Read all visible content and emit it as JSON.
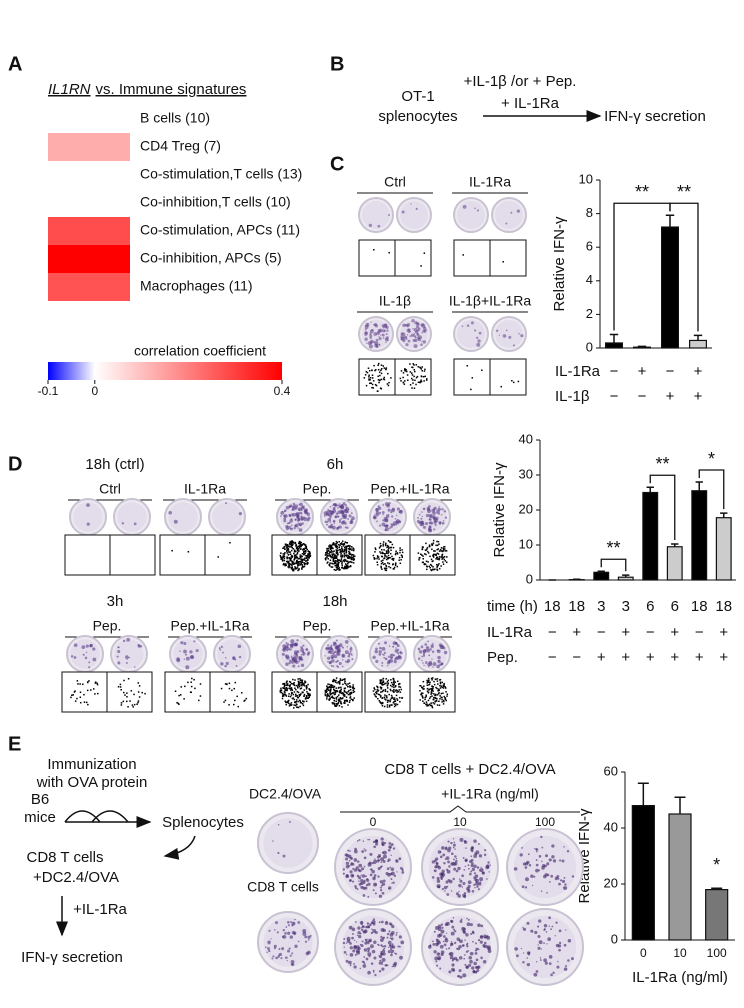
{
  "panel_labels": [
    "A",
    "B",
    "C",
    "D",
    "E"
  ],
  "chart_data": [
    {
      "type": "heatmap",
      "title_gene": "IL1RN",
      "title": "vs. Immune signatures",
      "categories": [
        "B cells (10)",
        "CD4 Treg (7)",
        "Co-stimulation,T cells (13)",
        "Co-inhibition,T cells (10)",
        "Co-stimulation, APCs (11)",
        "Co-inhibition, APCs (5)",
        "Macrophages (11)"
      ],
      "values": [
        0.0,
        0.13,
        0.0,
        0.0,
        0.28,
        0.4,
        0.27
      ],
      "colorbar": {
        "label": "correlation coefficient",
        "lim": [
          -0.1,
          0.4
        ],
        "ticks": [
          -0.1,
          0,
          0.4
        ],
        "colors": [
          "#0000ff",
          "#ffffff",
          "#ff0000"
        ]
      }
    },
    {
      "type": "bar",
      "ylabel": "Relative IFN-γ",
      "ylim": [
        0,
        10
      ],
      "yticks": [
        0,
        2,
        4,
        6,
        8,
        10
      ],
      "values": [
        0.3,
        0.05,
        7.2,
        0.45
      ],
      "errors": [
        0.5,
        0.05,
        0.7,
        0.3
      ],
      "colors": [
        "#000000",
        "#ffffff",
        "#000000",
        "#cccccc"
      ],
      "significance": [
        "**",
        "**"
      ],
      "rows": [
        {
          "label": "IL-1Ra",
          "values": [
            "−",
            "+",
            "−",
            "+"
          ]
        },
        {
          "label": "IL-1β",
          "values": [
            "−",
            "−",
            "+",
            "+"
          ]
        }
      ]
    },
    {
      "type": "bar",
      "ylabel": "Relative IFN-γ",
      "ylim": [
        0,
        40
      ],
      "yticks": [
        0,
        10,
        20,
        30,
        40
      ],
      "values": [
        0,
        0.1,
        2.2,
        0.8,
        25,
        9.5,
        25.5,
        17.8
      ],
      "errors": [
        0,
        0.1,
        0.3,
        0.6,
        1.5,
        0.8,
        2.5,
        1.3
      ],
      "colors": [
        "#000000",
        "#cccccc",
        "#000000",
        "#cccccc",
        "#000000",
        "#cccccc",
        "#000000",
        "#cccccc"
      ],
      "significance": [
        "**",
        "**",
        "*"
      ],
      "rows": [
        {
          "label": "time (h)",
          "values": [
            18,
            18,
            3,
            3,
            6,
            6,
            18,
            18
          ]
        },
        {
          "label": "IL-1Ra",
          "values": [
            "−",
            "+",
            "−",
            "+",
            "−",
            "+",
            "−",
            "+"
          ]
        },
        {
          "label": "Pep.",
          "values": [
            "−",
            "−",
            "+",
            "+",
            "+",
            "+",
            "+",
            "+"
          ]
        }
      ]
    },
    {
      "type": "bar",
      "ylabel": "Relative IFN-γ",
      "xlabel": "IL-1Ra (ng/ml)",
      "ylim": [
        0,
        60
      ],
      "yticks": [
        0,
        20,
        40,
        60
      ],
      "categories": [
        "0",
        "10",
        "100"
      ],
      "values": [
        48,
        45,
        18
      ],
      "errors": [
        8,
        6,
        0.5
      ],
      "colors": [
        "#000000",
        "#999999",
        "#777777"
      ],
      "significance": [
        "*"
      ]
    }
  ],
  "diagram_b": {
    "treatment": "+IL-1β /or + Pep.",
    "blocker": "+ IL-1Ra",
    "source": [
      "OT-1",
      "splenocytes"
    ],
    "readout": "IFN-γ secretion"
  },
  "images_c": {
    "groups": [
      "Ctrl",
      "IL-1Ra",
      "IL-1β",
      "IL-1β+IL-1Ra"
    ]
  },
  "images_d": {
    "times": [
      "18h (ctrl)",
      "6h",
      "3h",
      "18h"
    ],
    "groups": [
      "Ctrl",
      "IL-1Ra",
      "Pep.",
      "Pep.+IL-1Ra",
      "Pep.",
      "Pep.+IL-1Ra",
      "Pep.",
      "Pep.+IL-1Ra"
    ]
  },
  "diagram_e": {
    "immunization": [
      "Immunization",
      "with OVA protein"
    ],
    "mice": [
      "B6",
      "mice"
    ],
    "harvest": "Splenocytes",
    "coculture": [
      "CD8 T cells",
      "+DC2.4/OVA"
    ],
    "treatment": "+IL-1Ra",
    "readout": "IFN-γ secretion"
  },
  "images_e": {
    "controls": [
      "DC2.4/OVA",
      "CD8 T cells"
    ],
    "title": "CD8 T cells + DC2.4/OVA",
    "dose_label": "+IL-1Ra (ng/ml)",
    "doses": [
      "0",
      "10",
      "100"
    ]
  }
}
